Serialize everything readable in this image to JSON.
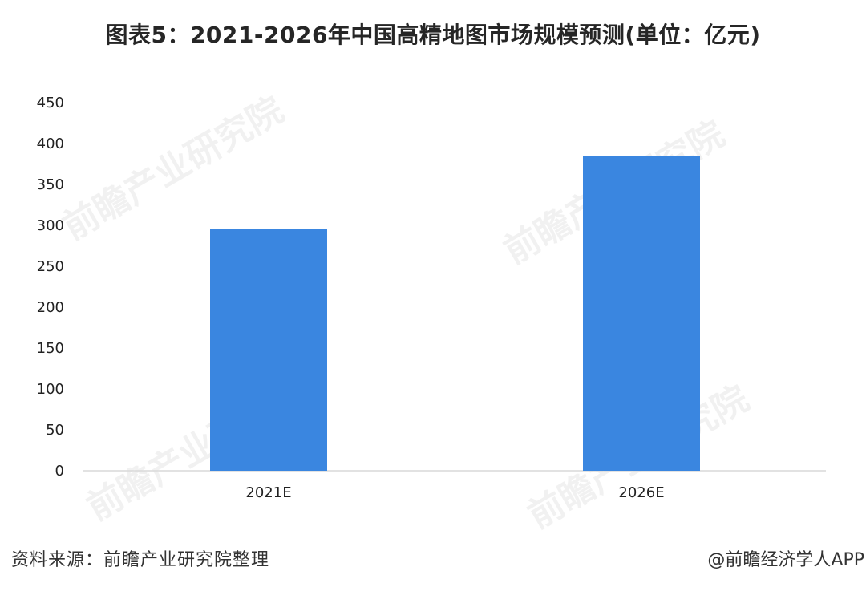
{
  "chart_data": {
    "type": "bar",
    "title": "图表5：2021-2026年中国高精地图市场规模预测(单位：亿元)",
    "categories": [
      "2021E",
      "2026E"
    ],
    "values": [
      296,
      385
    ],
    "ylim": [
      0,
      450
    ],
    "yticks": [
      0,
      50,
      100,
      150,
      200,
      250,
      300,
      350,
      400,
      450
    ],
    "xlabel": "",
    "ylabel": "",
    "grid": false,
    "bar_color": "#3a86e0",
    "axis_color": "#d9d9d9"
  },
  "footer": {
    "source": "资料来源：前瞻产业研究院整理",
    "credit": "@前瞻经济学人APP"
  },
  "watermark": {
    "text": "前瞻产业研究院"
  }
}
